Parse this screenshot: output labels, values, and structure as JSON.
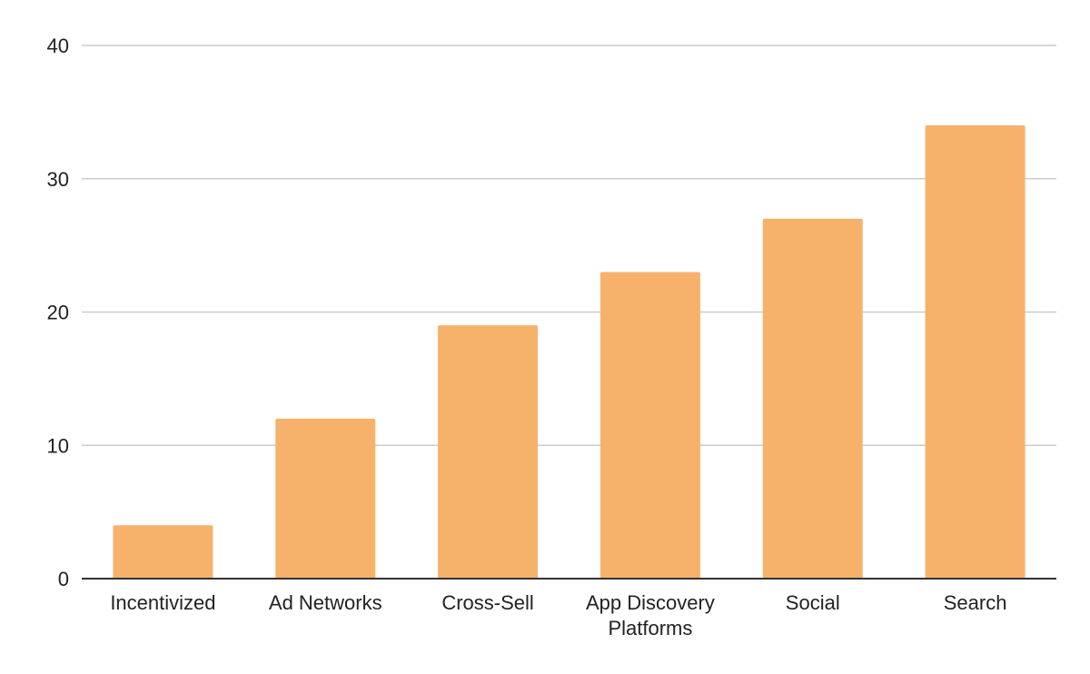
{
  "chart_data": {
    "type": "bar",
    "title": "",
    "xlabel": "",
    "ylabel": "",
    "categories": [
      [
        "Incentivized"
      ],
      [
        "Ad Networks"
      ],
      [
        "Cross-Sell"
      ],
      [
        "App Discovery",
        "Platforms"
      ],
      [
        "Social"
      ],
      [
        "Search"
      ]
    ],
    "values": [
      4,
      12,
      19,
      23,
      27,
      34
    ],
    "ylim": [
      0,
      40
    ],
    "yticks": [
      "0",
      "10",
      "20",
      "30",
      "40"
    ],
    "grid": true,
    "legend": "none",
    "colors": {
      "bar": "#f6b26b",
      "grid": "#cccccc",
      "axis": "#333333",
      "text": "#222222"
    }
  }
}
